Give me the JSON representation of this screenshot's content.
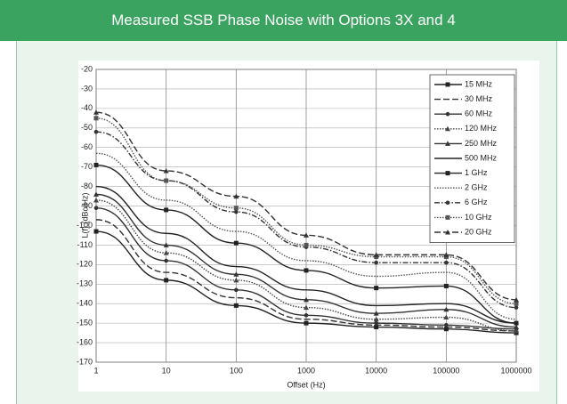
{
  "header": {
    "title": "Measured SSB Phase Noise with Options 3X and 4"
  },
  "chart_data": {
    "type": "line",
    "x_label": "Offset (Hz)",
    "y_label": "L(f) (dBc/Hz)",
    "x": [
      1,
      10,
      100,
      1000,
      10000,
      100000,
      1000000
    ],
    "xlim": [
      1,
      1000000
    ],
    "xticks": [
      1,
      10,
      100,
      1000,
      10000,
      100000,
      1000000
    ],
    "xscale": "log",
    "ylim": [
      -170,
      -20
    ],
    "yticks": [
      -170,
      -160,
      -150,
      -140,
      -130,
      -120,
      -110,
      -100,
      -90,
      -80,
      -70,
      -60,
      -50,
      -40,
      -30,
      -20
    ],
    "grid": true,
    "legend": "upper right",
    "series": [
      {
        "name": "15 MHz",
        "color": "#222222",
        "dash": "solid",
        "marker": "square",
        "values": [
          -103,
          -128,
          -141,
          -150,
          -152,
          -153,
          -155
        ]
      },
      {
        "name": "30 MHz",
        "color": "#333333",
        "dash": "dashed",
        "marker": "none",
        "values": [
          -97,
          -124,
          -137,
          -148,
          -151,
          -152,
          -154
        ]
      },
      {
        "name": "60 MHz",
        "color": "#333333",
        "dash": "solid",
        "marker": "circle",
        "values": [
          -91,
          -118,
          -133,
          -146,
          -150,
          -151,
          -153
        ]
      },
      {
        "name": "120 MHz",
        "color": "#444444",
        "dash": "dotted",
        "marker": "triangle",
        "values": [
          -87,
          -114,
          -128,
          -142,
          -148,
          -147,
          -154
        ]
      },
      {
        "name": "250 MHz",
        "color": "#333333",
        "dash": "solid",
        "marker": "triangle",
        "values": [
          -84,
          -110,
          -125,
          -138,
          -145,
          -143,
          -152
        ]
      },
      {
        "name": "500 MHz",
        "color": "#222222",
        "dash": "solid",
        "marker": "none",
        "values": [
          -80,
          -104,
          -121,
          -133,
          -141,
          -140,
          -150
        ]
      },
      {
        "name": "1 GHz",
        "color": "#222222",
        "dash": "solid",
        "marker": "square",
        "values": [
          -69,
          -92,
          -109,
          -123,
          -132,
          -131,
          -150
        ]
      },
      {
        "name": "2 GHz",
        "color": "#555555",
        "dash": "dotted",
        "marker": "none",
        "values": [
          -63,
          -87,
          -103,
          -118,
          -126,
          -124,
          -148
        ]
      },
      {
        "name": "6 GHz",
        "color": "#333333",
        "dash": "dashdot",
        "marker": "circle",
        "values": [
          -52,
          -77,
          -93,
          -111,
          -119,
          -119,
          -142
        ]
      },
      {
        "name": "10 GHz",
        "color": "#555555",
        "dash": "dotted",
        "marker": "square",
        "values": [
          -45,
          -77,
          -91,
          -110,
          -116,
          -116,
          -140
        ]
      },
      {
        "name": "20 GHz",
        "color": "#333333",
        "dash": "dashed",
        "marker": "triangle",
        "values": [
          -42,
          -72,
          -85,
          -105,
          -115,
          -115,
          -138
        ]
      }
    ]
  }
}
